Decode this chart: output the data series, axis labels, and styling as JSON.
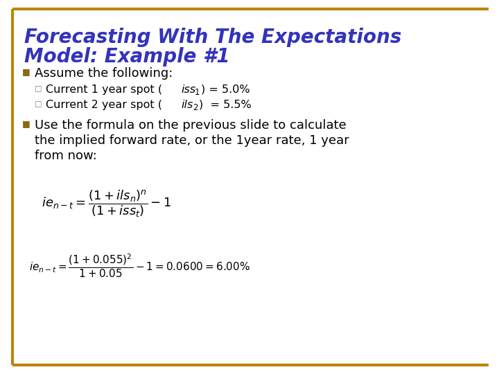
{
  "title_line1": "Forecasting With The Expectations",
  "title_line2": "Model: Example #1",
  "title_color": "#3333BB",
  "background_color": "#FFFFFF",
  "border_color": "#B8860B",
  "bullet1_text": "Assume the following:",
  "bullet2_line1": "Use the formula on the previous slide to calculate",
  "bullet2_line2": "the implied forward rate, or the 1year rate, 1 year",
  "bullet2_line3": "from now:",
  "sub1_pre": "Current 1 year spot (",
  "sub1_italic": "iss",
  "sub1_subscript": "1",
  "sub1_post": ") = 5.0%",
  "sub2_pre": "Current 2 year spot (",
  "sub2_italic": "ils",
  "sub2_subscript": "2",
  "sub2_post": ")  = 5.5%",
  "square_bullet_color": "#8B6914",
  "small_square_color": "#808080",
  "text_color": "#000000",
  "figsize": [
    7.2,
    5.4
  ],
  "dpi": 100,
  "title_fontsize": 20,
  "bullet_fontsize": 13,
  "sub_fontsize": 11.5,
  "formula_fontsize": 13,
  "formula2_fontsize": 11
}
